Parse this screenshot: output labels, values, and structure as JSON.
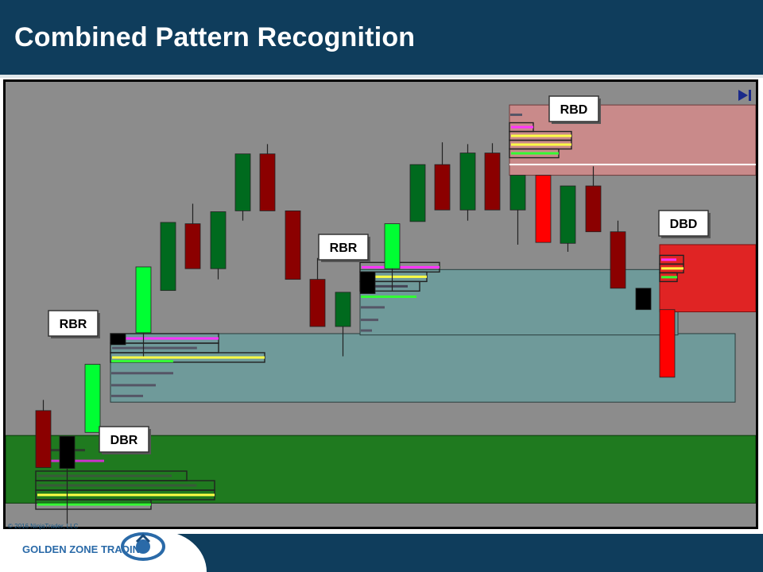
{
  "page": {
    "title": "Combined Pattern Recognition",
    "copyright": "© 2016 NinjaTrader, LLC",
    "logo_text": "GOLDEN ZONE TRADING"
  },
  "colors": {
    "header_bg": "#0f3d5c",
    "chart_bg": "#8c8c8c",
    "up_strong": "#00ff33",
    "up": "#006a1e",
    "down": "#8b0000",
    "down_strong": "#ff0000",
    "base": "#000000",
    "demand_zone": "#1f7a1f",
    "demand_zone_2": "#6f9a9a",
    "supply_zone": "#c98a8a",
    "supply_zone_2": "#e02424"
  },
  "chart_data": {
    "type": "candlestick",
    "y_range": [
      0,
      100
    ],
    "candles": [
      {
        "type": "down",
        "open": 26.1,
        "close": 13.3,
        "high": 28.5,
        "low": 13.3
      },
      {
        "type": "base",
        "open": 20.3,
        "close": 13.1,
        "high": 20.3,
        "low": 0.7
      },
      {
        "type": "up_strong",
        "open": 21.2,
        "close": 36.5,
        "high": 36.5,
        "low": 21.2
      },
      {
        "type": "base",
        "open": 40.9,
        "close": 43.4,
        "high": 43.4,
        "low": 40.9
      },
      {
        "type": "up_strong",
        "open": 43.6,
        "close": 58.4,
        "high": 58.4,
        "low": 38.3
      },
      {
        "type": "up",
        "open": 53.1,
        "close": 68.4,
        "high": 68.4,
        "low": 53.1
      },
      {
        "type": "down",
        "open": 68.1,
        "close": 58.0,
        "high": 72.6,
        "low": 58.0
      },
      {
        "type": "up",
        "open": 58.0,
        "close": 70.8,
        "high": 70.8,
        "low": 55.6
      },
      {
        "type": "up",
        "open": 71.0,
        "close": 83.8,
        "high": 83.8,
        "low": 68.8
      },
      {
        "type": "down",
        "open": 83.8,
        "close": 71.0,
        "high": 86.0,
        "low": 71.0
      },
      {
        "type": "down",
        "open": 71.0,
        "close": 55.6,
        "high": 71.0,
        "low": 55.6
      },
      {
        "type": "down",
        "open": 55.6,
        "close": 45.0,
        "high": 60.4,
        "low": 45.0
      },
      {
        "type": "up",
        "open": 45.0,
        "close": 52.7,
        "high": 52.7,
        "low": 38.3
      },
      {
        "type": "base",
        "open": 52.4,
        "close": 57.3,
        "high": 57.3,
        "low": 52.4
      },
      {
        "type": "up_strong",
        "open": 58.0,
        "close": 68.1,
        "high": 68.1,
        "low": 53.1
      },
      {
        "type": "up",
        "open": 68.6,
        "close": 81.4,
        "high": 81.4,
        "low": 68.6
      },
      {
        "type": "down",
        "open": 81.4,
        "close": 71.2,
        "high": 86.4,
        "low": 71.2
      },
      {
        "type": "up",
        "open": 71.2,
        "close": 84.0,
        "high": 86.0,
        "low": 68.8
      },
      {
        "type": "down",
        "open": 84.0,
        "close": 71.2,
        "high": 86.2,
        "low": 71.2
      },
      {
        "type": "up",
        "open": 71.2,
        "close": 79.0,
        "high": 79.0,
        "low": 63.4
      },
      {
        "type": "down_strong",
        "open": 79.0,
        "close": 63.9,
        "high": 79.0,
        "low": 63.9
      },
      {
        "type": "up",
        "open": 63.7,
        "close": 76.6,
        "high": 76.6,
        "low": 61.8
      },
      {
        "type": "down",
        "open": 76.6,
        "close": 66.3,
        "high": 81.0,
        "low": 66.3
      },
      {
        "type": "down",
        "open": 66.3,
        "close": 53.6,
        "high": 68.8,
        "low": 53.6
      },
      {
        "type": "base",
        "open": 53.6,
        "close": 48.8,
        "high": 53.6,
        "low": 48.8
      },
      {
        "type": "down_strong",
        "open": 48.8,
        "close": 33.6,
        "high": 48.8,
        "low": 33.6
      }
    ],
    "zones": [
      {
        "label": "DBR",
        "type": "demand",
        "top": 20.5,
        "bottom": 5.3
      },
      {
        "label": "RBR",
        "type": "demand",
        "top": 43.4,
        "bottom": 28.0
      },
      {
        "label": "RBR",
        "type": "demand",
        "top": 57.8,
        "bottom": 43.1
      },
      {
        "label": "RBD",
        "type": "supply",
        "top": 94.8,
        "bottom": 79.0
      },
      {
        "label": "DBD",
        "type": "supply",
        "top": 63.4,
        "bottom": 48.3
      }
    ],
    "annotations": [
      "DBR",
      "RBR",
      "RBR",
      "RBD",
      "DBD"
    ]
  }
}
